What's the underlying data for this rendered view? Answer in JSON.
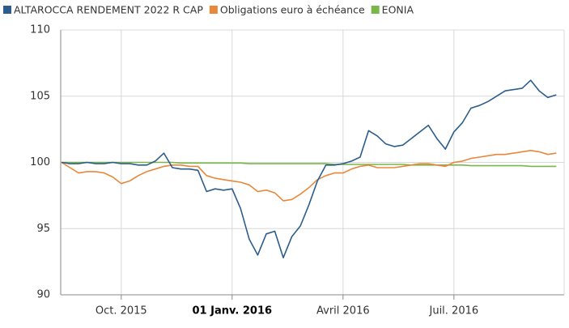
{
  "chart_data": {
    "type": "line",
    "categories": [
      null,
      null,
      null,
      null,
      null,
      null,
      null,
      "Oct. 2015",
      null,
      null,
      null,
      null,
      null,
      null,
      null,
      null,
      null,
      null,
      null,
      null,
      "01 Janv. 2016",
      null,
      null,
      null,
      null,
      null,
      null,
      null,
      null,
      null,
      null,
      null,
      null,
      "Avril 2016",
      null,
      null,
      null,
      null,
      null,
      null,
      null,
      null,
      null,
      null,
      null,
      null,
      "Juil. 2016",
      null,
      null,
      null,
      null,
      null,
      null,
      null,
      null,
      null,
      null,
      null,
      null
    ],
    "series": [
      {
        "name": "ALTAROCCA RENDEMENT 2022 R CAP",
        "color": "#2c5d8c",
        "values": [
          100.0,
          99.9,
          99.9,
          100.0,
          99.9,
          99.9,
          100.0,
          99.9,
          99.9,
          99.8,
          99.8,
          100.1,
          100.7,
          99.6,
          99.5,
          99.5,
          99.4,
          97.8,
          98.0,
          97.9,
          98.0,
          96.5,
          94.2,
          93.0,
          94.6,
          94.8,
          92.8,
          94.4,
          95.2,
          96.8,
          98.6,
          99.8,
          99.8,
          99.9,
          100.1,
          100.4,
          102.4,
          102.0,
          101.4,
          101.2,
          101.3,
          101.8,
          102.3,
          102.8,
          101.8,
          101.0,
          102.3,
          103.0,
          104.1,
          104.3,
          104.6,
          105.0,
          105.4,
          105.5,
          105.6,
          106.2,
          105.4,
          104.9,
          105.1
        ]
      },
      {
        "name": "Obligations euro à échéance",
        "color": "#e8883a",
        "values": [
          100.0,
          99.6,
          99.2,
          99.3,
          99.3,
          99.2,
          98.9,
          98.4,
          98.6,
          99.0,
          99.3,
          99.5,
          99.7,
          99.8,
          99.8,
          99.7,
          99.7,
          99.0,
          98.8,
          98.7,
          98.6,
          98.5,
          98.3,
          97.8,
          97.9,
          97.7,
          97.1,
          97.2,
          97.6,
          98.1,
          98.7,
          99.0,
          99.2,
          99.2,
          99.5,
          99.7,
          99.8,
          99.6,
          99.6,
          99.6,
          99.7,
          99.8,
          99.9,
          99.9,
          99.8,
          99.7,
          100.0,
          100.1,
          100.3,
          100.4,
          100.5,
          100.6,
          100.6,
          100.7,
          100.8,
          100.9,
          100.8,
          100.6,
          100.7
        ]
      },
      {
        "name": "EONIA",
        "color": "#7ab648",
        "values": [
          100.0,
          100.0,
          100.0,
          100.0,
          100.0,
          100.0,
          100.0,
          100.0,
          100.0,
          100.0,
          100.0,
          100.0,
          100.0,
          100.0,
          99.95,
          99.95,
          99.95,
          99.95,
          99.95,
          99.95,
          99.95,
          99.95,
          99.9,
          99.9,
          99.9,
          99.9,
          99.9,
          99.9,
          99.9,
          99.9,
          99.9,
          99.9,
          99.85,
          99.85,
          99.85,
          99.85,
          99.85,
          99.85,
          99.85,
          99.85,
          99.85,
          99.8,
          99.8,
          99.8,
          99.8,
          99.8,
          99.8,
          99.8,
          99.75,
          99.75,
          99.75,
          99.75,
          99.75,
          99.75,
          99.75,
          99.7,
          99.7,
          99.7,
          99.7
        ]
      }
    ],
    "ylim": [
      90,
      110
    ],
    "yticks": [
      90,
      95,
      100,
      105,
      110
    ],
    "grid": true,
    "legend": "top"
  }
}
